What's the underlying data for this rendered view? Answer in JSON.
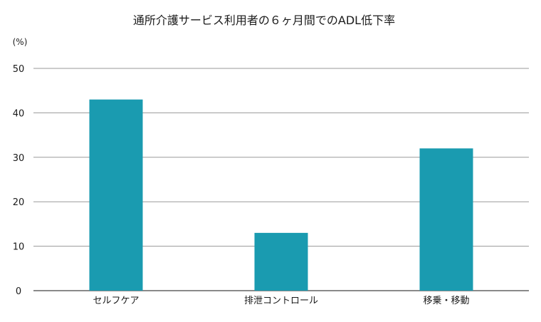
{
  "chart_data": {
    "type": "bar",
    "title": "通所介護サービス利用者の６ヶ月間でのADL低下率",
    "unit_label": "(%)",
    "xlabel": "",
    "ylabel": "",
    "categories": [
      "セルフケア",
      "排泄コントロール",
      "移乗・移動"
    ],
    "values": [
      43,
      13,
      32
    ],
    "ylim": [
      0,
      50
    ],
    "yticks": [
      0,
      10,
      20,
      30,
      40,
      50
    ],
    "grid": true,
    "legend": "none",
    "bar_color": "#1a9bb0",
    "grid_color": "#9a9a9a"
  }
}
